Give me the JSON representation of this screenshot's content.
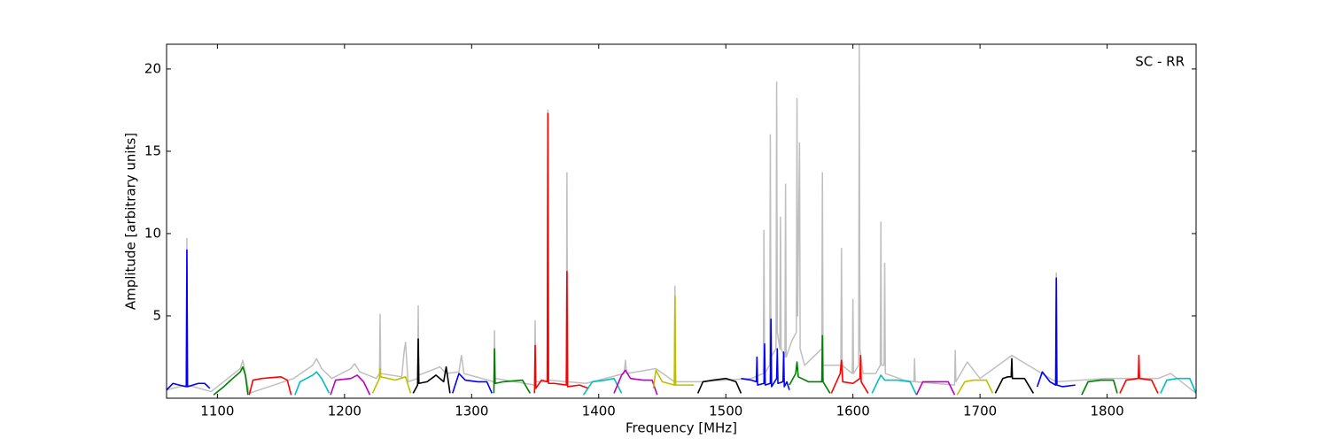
{
  "chart_data": {
    "type": "line",
    "xlabel": "Frequency [MHz]",
    "ylabel": "Amplitude [arbitrary units]",
    "annotation": "SC - RR",
    "xlim": [
      1060,
      1870
    ],
    "ylim": [
      0,
      21.5
    ],
    "xticks": [
      1100,
      1200,
      1300,
      1400,
      1500,
      1600,
      1700,
      1800
    ],
    "yticks": [
      5,
      10,
      15,
      20
    ],
    "series": [
      {
        "color": "#bfbfbf",
        "x": [
          1060,
          1075.5,
          1076,
          1076.5,
          1095,
          1118,
          1120,
          1122,
          1125,
          1160,
          1175,
          1178,
          1182,
          1190,
          1205,
          1208,
          1212,
          1225,
          1227.5,
          1228,
          1228.5,
          1245,
          1247,
          1248,
          1250,
          1257.5,
          1258,
          1258.5,
          1275,
          1280,
          1290,
          1292,
          1294,
          1317.5,
          1318,
          1318.5,
          1349.5,
          1350,
          1350.5,
          1359.5,
          1360,
          1360.5,
          1374.5,
          1375,
          1375.5,
          1390,
          1420,
          1421,
          1422,
          1445,
          1459.5,
          1460,
          1460.5,
          1480,
          1520,
          1529.5,
          1530,
          1530.5,
          1534.5,
          1535,
          1535.5,
          1539.5,
          1540,
          1540.5,
          1542.5,
          1543,
          1543.5,
          1546.5,
          1547,
          1547.5,
          1552,
          1555.5,
          1556,
          1556.5,
          1558,
          1558.5,
          1562,
          1575.5,
          1576,
          1576.5,
          1590.5,
          1591,
          1591.5,
          1599.5,
          1600,
          1600.5,
          1604.5,
          1605,
          1605.5,
          1608,
          1618,
          1621.5,
          1622,
          1622.5,
          1624.5,
          1625,
          1625.5,
          1640,
          1648,
          1648.5,
          1649,
          1680,
          1680.5,
          1681,
          1690,
          1700,
          1725,
          1759.5,
          1760,
          1760.5,
          1800,
          1840,
          1850,
          1870
        ],
        "values": [
          0.5,
          0.8,
          9.7,
          0.8,
          0.4,
          1.8,
          2.3,
          1.5,
          0.3,
          1.2,
          2.0,
          2.4,
          1.8,
          1.2,
          1.8,
          2.1,
          1.6,
          1.2,
          1.5,
          5.1,
          1.5,
          1.3,
          2.9,
          3.4,
          1.0,
          1.2,
          5.6,
          1.4,
          1.9,
          1.5,
          1.6,
          2.6,
          1.5,
          1.0,
          4.1,
          1.2,
          0.8,
          4.7,
          1.0,
          1.0,
          17.5,
          1.1,
          1.0,
          13.7,
          1.0,
          0.9,
          1.5,
          2.3,
          1.5,
          1.8,
          1.0,
          6.8,
          1.0,
          1.0,
          1.2,
          1.5,
          10.2,
          1.5,
          2.0,
          16.0,
          2.5,
          3.0,
          19.2,
          4.0,
          3.0,
          11.0,
          3.0,
          2.5,
          13.0,
          2.5,
          3.5,
          4.0,
          18.2,
          5.0,
          15.5,
          3.0,
          2.0,
          3.0,
          13.7,
          2.0,
          2.0,
          9.1,
          2.0,
          1.5,
          6.0,
          1.5,
          2.0,
          21.5,
          3.0,
          1.5,
          1.5,
          2.0,
          10.7,
          2.0,
          2.0,
          8.2,
          1.5,
          1.1,
          1.0,
          2.4,
          1.0,
          0.8,
          2.9,
          1.0,
          2.2,
          1.2,
          2.6,
          1.0,
          7.6,
          1.0,
          1.2,
          1.2,
          1.5,
          0.3
        ]
      },
      {
        "color": "#0000ff",
        "x": [
          1060,
          1065,
          1070,
          1075.5,
          1076,
          1076.5,
          1085,
          1090,
          1094
        ],
        "values": [
          0.5,
          0.9,
          0.8,
          0.7,
          9.0,
          0.7,
          0.9,
          0.9,
          0.6
        ]
      },
      {
        "color": "#008000",
        "x": [
          1097,
          1105,
          1112,
          1118,
          1120,
          1122,
          1124
        ],
        "values": [
          0.2,
          0.7,
          1.2,
          1.6,
          1.9,
          1.4,
          0.2
        ]
      },
      {
        "color": "#ff0000",
        "x": [
          1125,
          1128,
          1135,
          1150,
          1155,
          1158
        ],
        "values": [
          0.2,
          1.1,
          1.2,
          1.3,
          1.1,
          0.2
        ]
      },
      {
        "color": "#00bfbf",
        "x": [
          1161,
          1165,
          1175,
          1178,
          1182,
          1188
        ],
        "values": [
          0.2,
          1.0,
          1.4,
          1.6,
          1.2,
          0.3
        ]
      },
      {
        "color": "#bf00bf",
        "x": [
          1189,
          1193,
          1205,
          1210,
          1215,
          1220
        ],
        "values": [
          0.2,
          1.1,
          1.2,
          1.4,
          1.0,
          0.2
        ]
      },
      {
        "color": "#bfbf00",
        "x": [
          1222,
          1227.5,
          1228,
          1228.5,
          1240,
          1248,
          1252
        ],
        "values": [
          0.3,
          1.2,
          1.8,
          1.3,
          1.1,
          1.3,
          0.3
        ]
      },
      {
        "color": "#000000",
        "x": [
          1254,
          1257.5,
          1258,
          1258.5,
          1265,
          1272,
          1278,
          1280,
          1283
        ],
        "values": [
          0.3,
          0.8,
          3.6,
          0.9,
          1.0,
          1.4,
          1.0,
          1.9,
          0.3
        ]
      },
      {
        "color": "#0000ff",
        "x": [
          1285,
          1290,
          1295,
          1305,
          1312,
          1316
        ],
        "values": [
          0.3,
          1.5,
          1.1,
          1.0,
          1.0,
          0.3
        ]
      },
      {
        "color": "#008000",
        "x": [
          1317.5,
          1318,
          1318.5,
          1325,
          1340,
          1346
        ],
        "values": [
          0.3,
          3.0,
          0.9,
          1.0,
          1.1,
          0.3
        ]
      },
      {
        "color": "#ff0000",
        "x": [
          1349.5,
          1350,
          1350.5,
          1355,
          1359.5,
          1360,
          1360.5,
          1365,
          1374.5,
          1375,
          1375.5,
          1385,
          1392
        ],
        "values": [
          0.3,
          3.2,
          0.6,
          1.1,
          1.0,
          17.3,
          0.9,
          0.9,
          0.8,
          7.7,
          0.7,
          0.8,
          0.6
        ]
      },
      {
        "color": "#00bfbf",
        "x": [
          1388,
          1395,
          1405,
          1412,
          1418
        ],
        "values": [
          0.2,
          1.0,
          1.1,
          1.2,
          0.3
        ]
      },
      {
        "color": "#bf00bf",
        "x": [
          1412,
          1418,
          1421,
          1425,
          1435,
          1442,
          1446
        ],
        "values": [
          0.3,
          1.4,
          1.7,
          1.2,
          1.1,
          1.1,
          0.2
        ]
      },
      {
        "color": "#bfbf00",
        "x": [
          1443,
          1445,
          1450,
          1459.5,
          1460,
          1460.5,
          1470,
          1475
        ],
        "values": [
          0.6,
          1.7,
          1.0,
          0.8,
          6.2,
          0.8,
          0.8,
          0.8
        ]
      },
      {
        "color": "#000000",
        "x": [
          1478,
          1482,
          1490,
          1500,
          1508,
          1512
        ],
        "values": [
          0.3,
          1.0,
          1.1,
          1.2,
          1.0,
          0.3
        ]
      },
      {
        "color": "#0000ff",
        "x": [
          1512,
          1520,
          1524,
          1524.5,
          1525,
          1530,
          1530.5,
          1531,
          1535,
          1535.5,
          1536,
          1540,
          1540.5,
          1541,
          1545,
          1545.5,
          1546,
          1548,
          1550
        ],
        "values": [
          1.2,
          1.1,
          1.0,
          2.5,
          0.8,
          0.9,
          3.3,
          0.8,
          0.9,
          4.8,
          0.7,
          1.2,
          3.0,
          0.9,
          1.0,
          2.8,
          0.7,
          1.0,
          0.5
        ]
      },
      {
        "color": "#008000",
        "x": [
          1550,
          1555,
          1556,
          1557,
          1565,
          1575.5,
          1576,
          1576.5,
          1582
        ],
        "values": [
          0.8,
          1.5,
          2.2,
          1.3,
          1.0,
          1.0,
          3.8,
          1.0,
          0.3
        ]
      },
      {
        "color": "#ff0000",
        "x": [
          1583,
          1590,
          1591,
          1592,
          1600,
          1605.5,
          1606,
          1606.5,
          1612
        ],
        "values": [
          0.3,
          1.5,
          2.3,
          1.0,
          0.9,
          1.2,
          2.6,
          1.0,
          0.3
        ]
      },
      {
        "color": "#00bfbf",
        "x": [
          1615,
          1620,
          1622,
          1625,
          1635,
          1645,
          1650
        ],
        "values": [
          0.3,
          1.1,
          1.4,
          1.1,
          1.1,
          1.0,
          0.2
        ]
      },
      {
        "color": "#bf00bf",
        "x": [
          1650,
          1655,
          1665,
          1675,
          1680
        ],
        "values": [
          0.2,
          1.0,
          1.0,
          1.0,
          0.2
        ]
      },
      {
        "color": "#bfbf00",
        "x": [
          1682,
          1688,
          1695,
          1705,
          1710
        ],
        "values": [
          0.2,
          1.0,
          1.1,
          1.1,
          0.3
        ]
      },
      {
        "color": "#000000",
        "x": [
          1712,
          1718,
          1722,
          1724.5,
          1725,
          1725.5,
          1735,
          1742
        ],
        "values": [
          0.3,
          1.2,
          1.3,
          1.3,
          2.4,
          1.2,
          1.2,
          0.3
        ]
      },
      {
        "color": "#0000ff",
        "x": [
          1745,
          1749,
          1755,
          1759.5,
          1760,
          1760.5,
          1765,
          1775
        ],
        "values": [
          0.7,
          1.6,
          1.0,
          0.8,
          7.3,
          0.8,
          0.7,
          0.8
        ]
      },
      {
        "color": "#008000",
        "x": [
          1780,
          1785,
          1795,
          1805,
          1808
        ],
        "values": [
          0.2,
          1.0,
          1.1,
          1.1,
          0.3
        ]
      },
      {
        "color": "#ff0000",
        "x": [
          1810,
          1815,
          1824.5,
          1825,
          1825.5,
          1835,
          1840
        ],
        "values": [
          0.3,
          1.1,
          1.2,
          2.6,
          1.2,
          1.1,
          0.3
        ]
      },
      {
        "color": "#00bfbf",
        "x": [
          1842,
          1847,
          1855,
          1865,
          1870
        ],
        "values": [
          0.3,
          1.1,
          1.2,
          1.2,
          0.3
        ]
      }
    ]
  }
}
